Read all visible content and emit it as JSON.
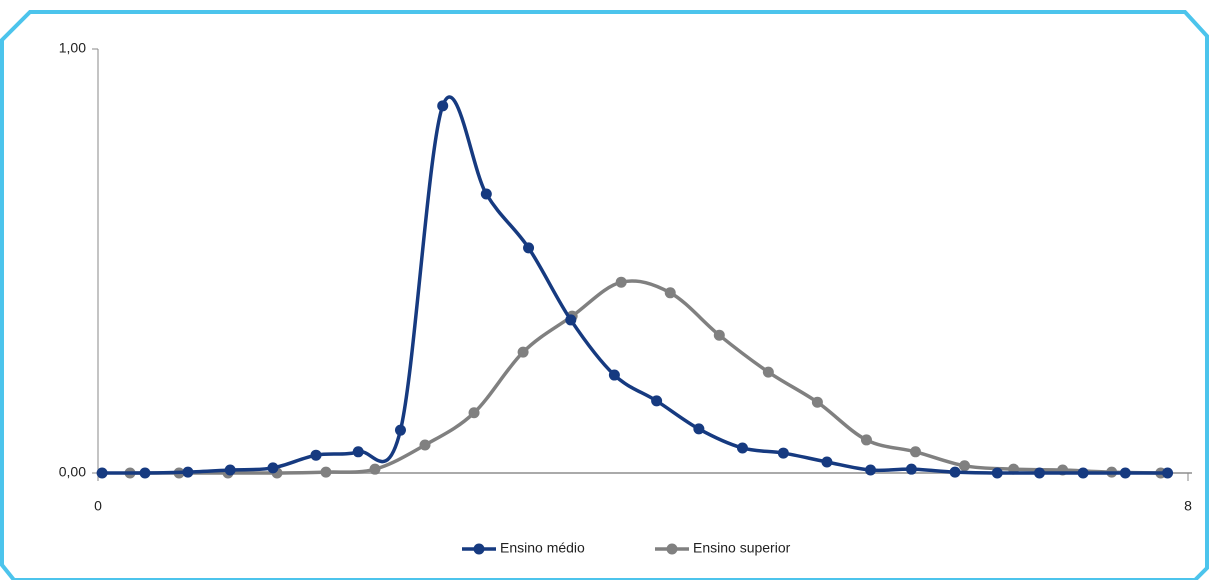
{
  "chart_data": {
    "type": "line",
    "xlim": [
      0,
      8
    ],
    "xticks": [
      0,
      8
    ],
    "ylim": [
      0,
      1
    ],
    "yticks": [
      {
        "value": 0,
        "label": "0,00"
      },
      {
        "value": 1,
        "label": "1,00"
      }
    ],
    "series": [
      {
        "name": "Ensino médio",
        "color": "#163a80",
        "x": [
          0.03,
          0.345,
          0.66,
          0.97,
          1.284,
          1.6,
          1.91,
          2.22,
          2.53,
          2.85,
          3.16,
          3.47,
          3.79,
          4.1,
          4.41,
          4.73,
          5.03,
          5.35,
          5.67,
          5.97,
          6.29,
          6.6,
          6.91,
          7.23,
          7.54,
          7.85
        ],
        "values": [
          0,
          0,
          0.002,
          0.007,
          0.012,
          0.042,
          0.05,
          0.101,
          0.866,
          0.658,
          0.531,
          0.361,
          0.231,
          0.17,
          0.104,
          0.059,
          0.047,
          0.026,
          0.007,
          0.009,
          0.002,
          0,
          0,
          0,
          0,
          0
        ]
      },
      {
        "name": "Ensino superior",
        "color": "#808080",
        "x": [
          0.235,
          0.595,
          0.954,
          1.314,
          1.673,
          2.033,
          2.4,
          2.76,
          3.12,
          3.48,
          3.84,
          4.2,
          4.56,
          4.92,
          5.28,
          5.64,
          6.0,
          6.36,
          6.72,
          7.08,
          7.44,
          7.8
        ],
        "values": [
          0,
          0,
          0,
          0,
          0.002,
          0.009,
          0.066,
          0.142,
          0.285,
          0.37,
          0.45,
          0.425,
          0.325,
          0.238,
          0.167,
          0.078,
          0.05,
          0.017,
          0.009,
          0.007,
          0.002,
          0
        ]
      }
    ]
  }
}
